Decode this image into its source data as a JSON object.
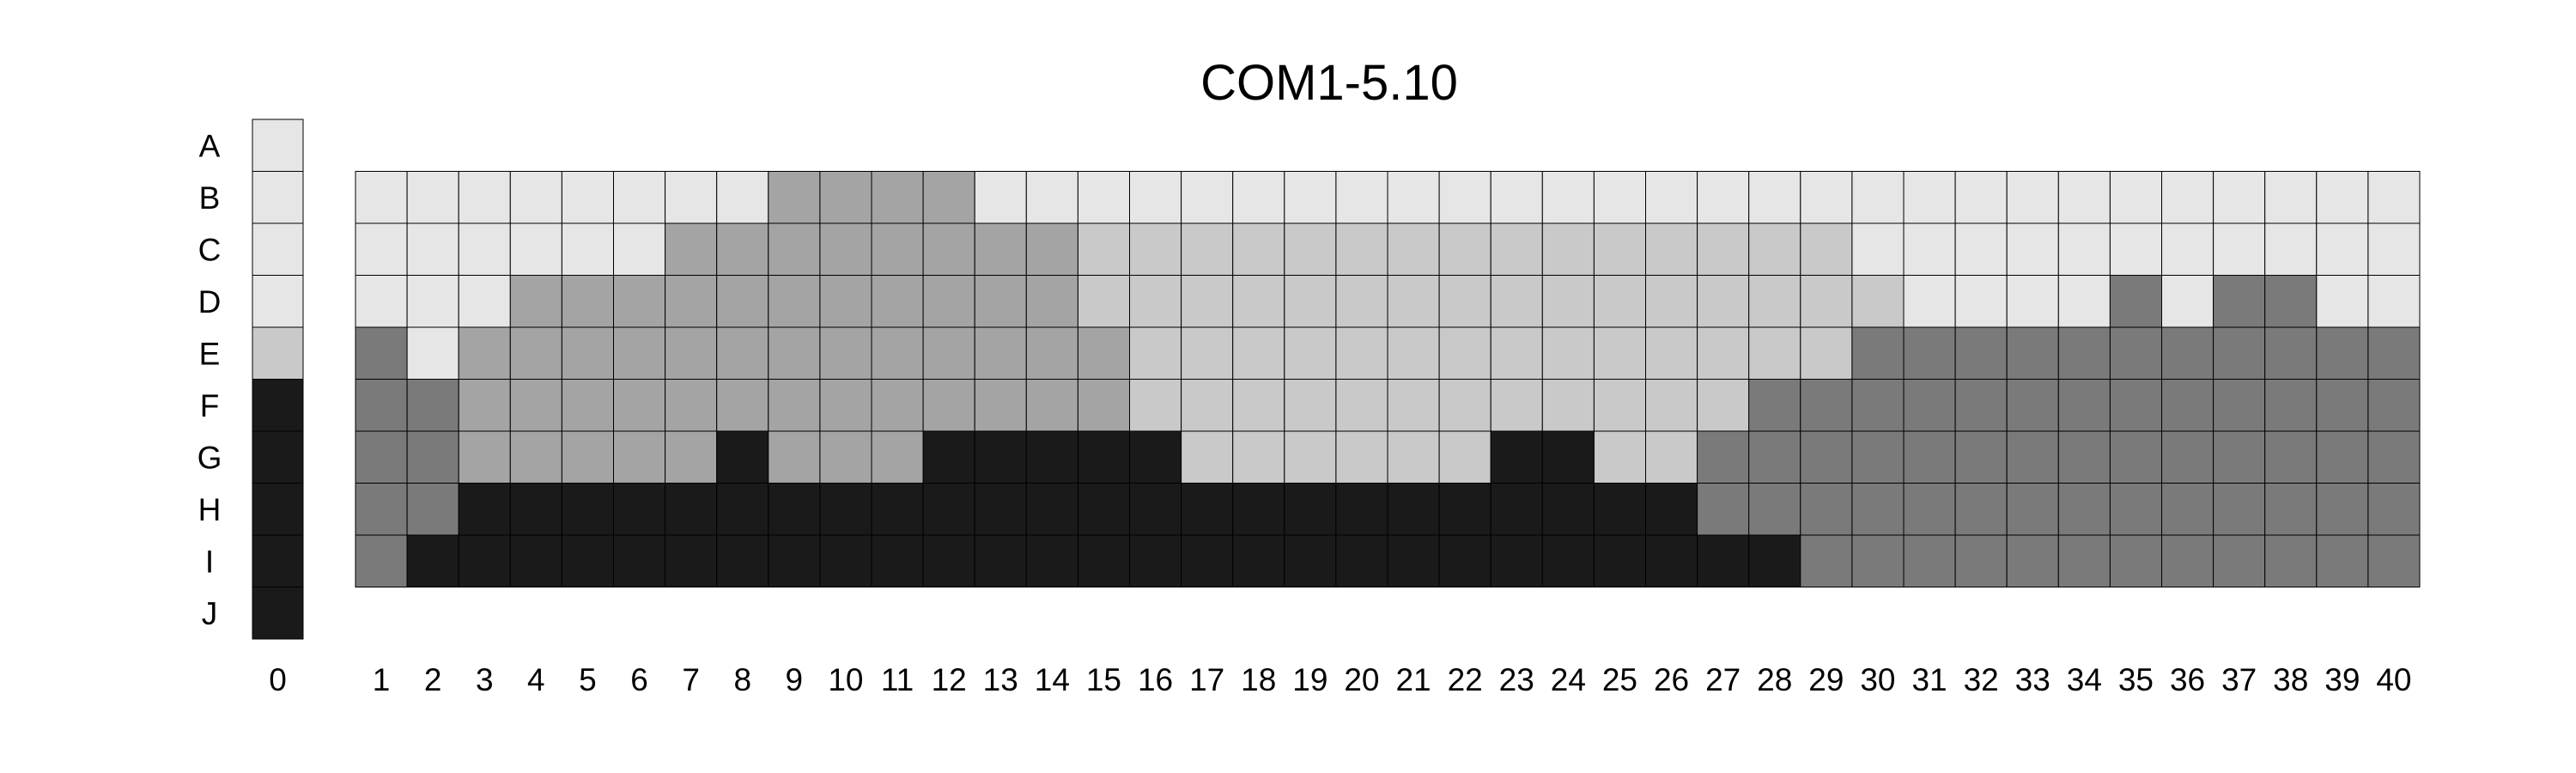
{
  "chart_data": {
    "type": "heatmap",
    "title": "COM1-5.10",
    "rows": [
      "A",
      "B",
      "C",
      "D",
      "E",
      "F",
      "G",
      "H",
      "I",
      "J"
    ],
    "columns": [
      0,
      1,
      2,
      3,
      4,
      5,
      6,
      7,
      8,
      9,
      10,
      11,
      12,
      13,
      14,
      15,
      16,
      17,
      18,
      19,
      20,
      21,
      22,
      23,
      24,
      25,
      26,
      27,
      28,
      29,
      30,
      31,
      32,
      33,
      34,
      35,
      36,
      37,
      38,
      39,
      40
    ],
    "shade_colors": {
      "1": "#e6e6e6",
      "2": "#c9c9c9",
      "3": "#a4a4a4",
      "4": "#7a7a7a",
      "5": "#1a1a1a"
    },
    "reference_column": {
      "column": 0,
      "values": [
        1,
        1,
        1,
        1,
        2,
        5,
        5,
        5,
        5,
        5
      ]
    },
    "grid_rows": [
      "B",
      "C",
      "D",
      "E",
      "F",
      "G",
      "H",
      "I"
    ],
    "grid": [
      [
        1,
        1,
        1,
        1,
        1,
        1,
        1,
        1,
        3,
        3,
        3,
        3,
        1,
        1,
        1,
        1,
        1,
        1,
        1,
        1,
        1,
        1,
        1,
        1,
        1,
        1,
        1,
        1,
        1,
        1,
        1,
        1,
        1,
        1,
        1,
        1,
        1,
        1,
        1,
        1
      ],
      [
        1,
        1,
        1,
        1,
        1,
        1,
        3,
        3,
        3,
        3,
        3,
        3,
        3,
        3,
        2,
        2,
        2,
        2,
        2,
        2,
        2,
        2,
        2,
        2,
        2,
        2,
        2,
        2,
        2,
        1,
        1,
        1,
        1,
        1,
        1,
        1,
        1,
        1,
        1,
        1
      ],
      [
        1,
        1,
        1,
        3,
        3,
        3,
        3,
        3,
        3,
        3,
        3,
        3,
        3,
        3,
        2,
        2,
        2,
        2,
        2,
        2,
        2,
        2,
        2,
        2,
        2,
        2,
        2,
        2,
        2,
        2,
        1,
        1,
        1,
        1,
        4,
        1,
        4,
        4,
        1,
        1
      ],
      [
        4,
        1,
        3,
        3,
        3,
        3,
        3,
        3,
        3,
        3,
        3,
        3,
        3,
        3,
        3,
        2,
        2,
        2,
        2,
        2,
        2,
        2,
        2,
        2,
        2,
        2,
        2,
        2,
        2,
        4,
        4,
        4,
        4,
        4,
        4,
        4,
        4,
        4,
        4,
        4
      ],
      [
        4,
        4,
        3,
        3,
        3,
        3,
        3,
        3,
        3,
        3,
        3,
        3,
        3,
        3,
        3,
        2,
        2,
        2,
        2,
        2,
        2,
        2,
        2,
        2,
        2,
        2,
        2,
        4,
        4,
        4,
        4,
        4,
        4,
        4,
        4,
        4,
        4,
        4,
        4,
        4
      ],
      [
        4,
        4,
        3,
        3,
        3,
        3,
        3,
        5,
        3,
        3,
        3,
        5,
        5,
        5,
        5,
        5,
        2,
        2,
        2,
        2,
        2,
        2,
        5,
        5,
        2,
        2,
        4,
        4,
        4,
        4,
        4,
        4,
        4,
        4,
        4,
        4,
        4,
        4,
        4,
        4
      ],
      [
        4,
        4,
        5,
        5,
        5,
        5,
        5,
        5,
        5,
        5,
        5,
        5,
        5,
        5,
        5,
        5,
        5,
        5,
        5,
        5,
        5,
        5,
        5,
        5,
        5,
        5,
        4,
        4,
        4,
        4,
        4,
        4,
        4,
        4,
        4,
        4,
        4,
        4,
        4,
        4
      ],
      [
        4,
        5,
        5,
        5,
        5,
        5,
        5,
        5,
        5,
        5,
        5,
        5,
        5,
        5,
        5,
        5,
        5,
        5,
        5,
        5,
        5,
        5,
        5,
        5,
        5,
        5,
        5,
        5,
        4,
        4,
        4,
        4,
        4,
        4,
        4,
        4,
        4,
        4,
        4,
        4
      ]
    ]
  }
}
